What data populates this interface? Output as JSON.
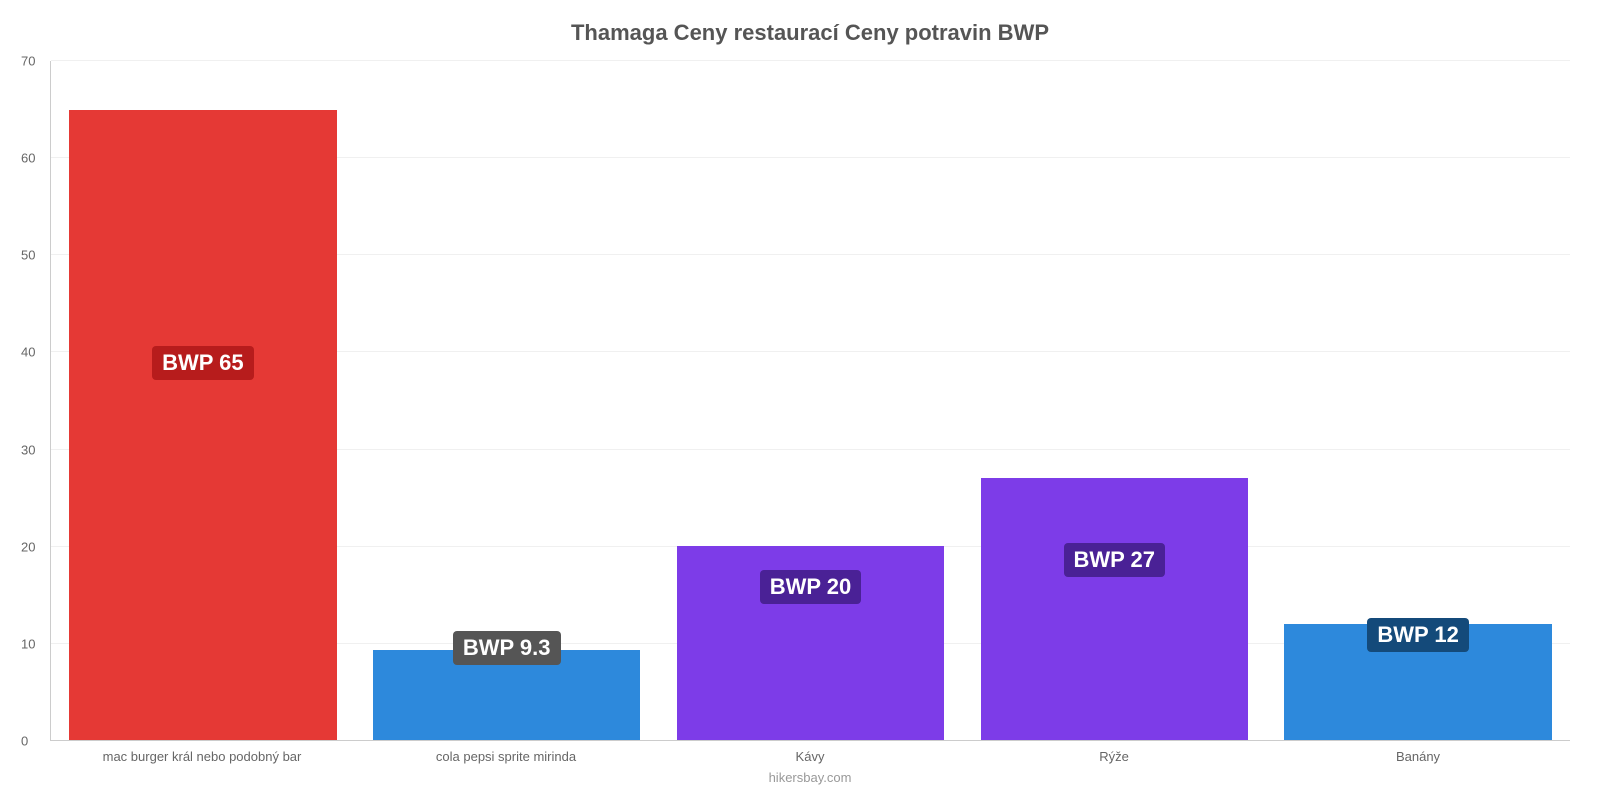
{
  "chart": {
    "type": "bar",
    "title": "Thamaga Ceny restaurací Ceny potravin BWP",
    "title_fontsize": 22,
    "title_color": "#555555",
    "background_color": "#ffffff",
    "grid_color": "#f0f0f0",
    "axis_color": "#cccccc",
    "tick_color": "#666666",
    "tick_fontsize": 13,
    "ylim": [
      0,
      70
    ],
    "ytick_step": 10,
    "yticks": [
      0,
      10,
      20,
      30,
      40,
      50,
      60,
      70
    ],
    "bar_width": 0.88,
    "bars": [
      {
        "category": "mac burger král nebo podobný bar",
        "value": 65,
        "bar_color": "#e53935",
        "label_text": "BWP 65",
        "label_bg_color": "#b71c1c",
        "label_position_pct": 53
      },
      {
        "category": "cola pepsi sprite mirinda",
        "value": 9.3,
        "bar_color": "#2d89dc",
        "label_text": "BWP 9.3",
        "label_bg_color": "#555555",
        "label_position_pct": 11
      },
      {
        "category": "Kávy",
        "value": 20,
        "bar_color": "#7d3ce8",
        "label_text": "BWP 20",
        "label_bg_color": "#4a2196",
        "label_position_pct": 20
      },
      {
        "category": "Rýže",
        "value": 27,
        "bar_color": "#7d3ce8",
        "label_text": "BWP 27",
        "label_bg_color": "#4a2196",
        "label_position_pct": 24
      },
      {
        "category": "Banány",
        "value": 12,
        "bar_color": "#2d89dc",
        "label_text": "BWP 12",
        "label_bg_color": "#144a7a",
        "label_position_pct": 13
      }
    ],
    "attribution": "hikersbay.com",
    "attribution_color": "#999999",
    "label_fontsize": 22
  }
}
